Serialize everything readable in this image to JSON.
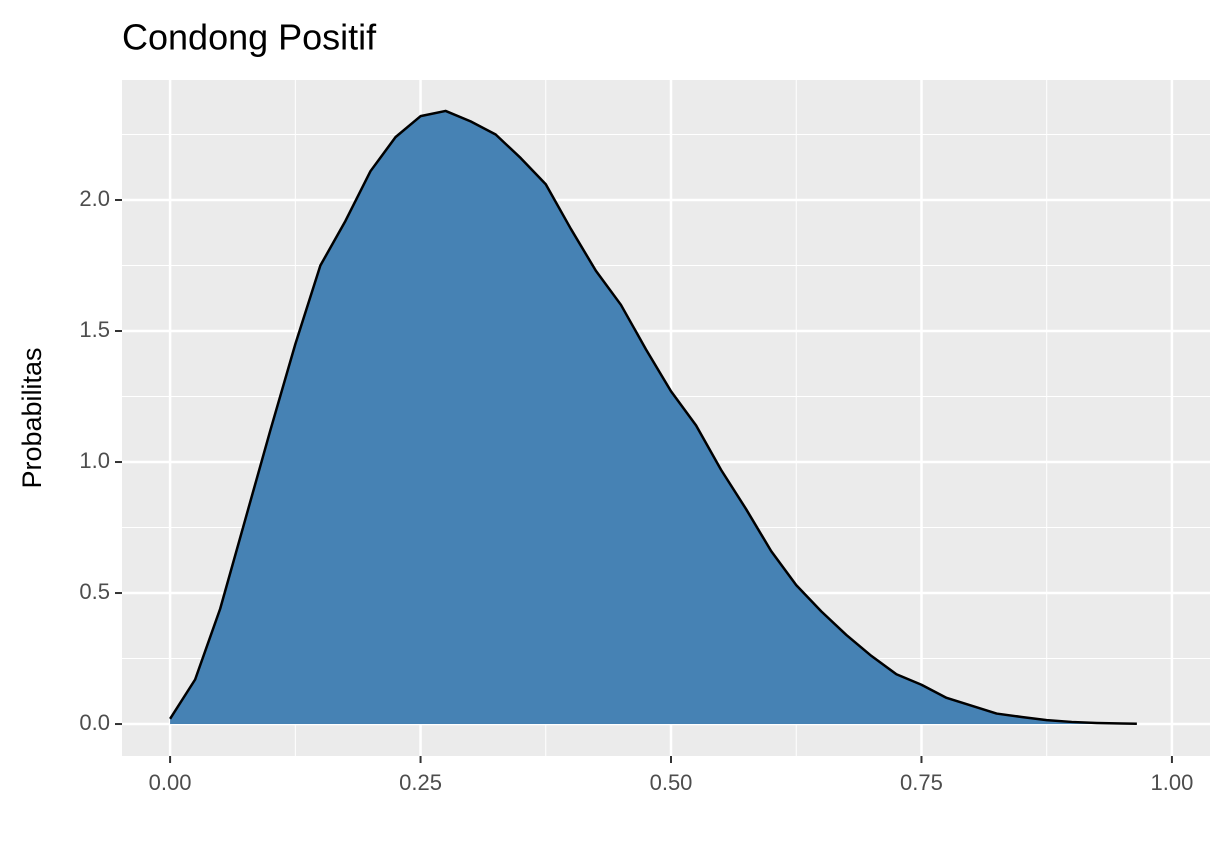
{
  "chart_data": {
    "type": "area",
    "title": "Condong Positif",
    "y_label": "Probabilitas",
    "x": [
      0,
      0.025,
      0.05,
      0.075,
      0.1,
      0.125,
      0.15,
      0.175,
      0.2,
      0.225,
      0.25,
      0.275,
      0.3,
      0.325,
      0.35,
      0.375,
      0.4,
      0.425,
      0.45,
      0.475,
      0.5,
      0.525,
      0.55,
      0.575,
      0.6,
      0.625,
      0.65,
      0.675,
      0.7,
      0.725,
      0.75,
      0.775,
      0.8,
      0.825,
      0.85,
      0.875,
      0.9,
      0.925,
      0.95,
      0.965
    ],
    "values": [
      0.02,
      0.17,
      0.44,
      0.78,
      1.12,
      1.45,
      1.75,
      1.92,
      2.11,
      2.24,
      2.32,
      2.34,
      2.3,
      2.25,
      2.16,
      2.06,
      1.89,
      1.73,
      1.6,
      1.43,
      1.27,
      1.14,
      0.97,
      0.82,
      0.66,
      0.53,
      0.43,
      0.34,
      0.26,
      0.19,
      0.15,
      0.1,
      0.07,
      0.04,
      0.027,
      0.015,
      0.008,
      0.004,
      0.002,
      0.001
    ],
    "color": "#4682b4",
    "line_color": "#000000",
    "xlim": [
      -0.048,
      1.038
    ],
    "ylim": [
      -0.122,
      2.458
    ],
    "xticks": [
      {
        "value": 0,
        "label": "0.00"
      },
      0.25,
      {
        "value": 0.5,
        "label": "0.50"
      },
      0.75,
      {
        "value": 1,
        "label": "1.00"
      }
    ],
    "yticks": [
      {
        "value": 0,
        "label": "0.0"
      },
      0.5,
      {
        "value": 1,
        "label": "1.0"
      },
      1.5,
      {
        "value": 2,
        "label": "2.0"
      }
    ],
    "x_minor_ticks": [
      0.125,
      0.375,
      0.625,
      0.875
    ],
    "y_minor_ticks": [
      0.25,
      0.75,
      1.25,
      1.75,
      2.25
    ],
    "grid": true
  }
}
